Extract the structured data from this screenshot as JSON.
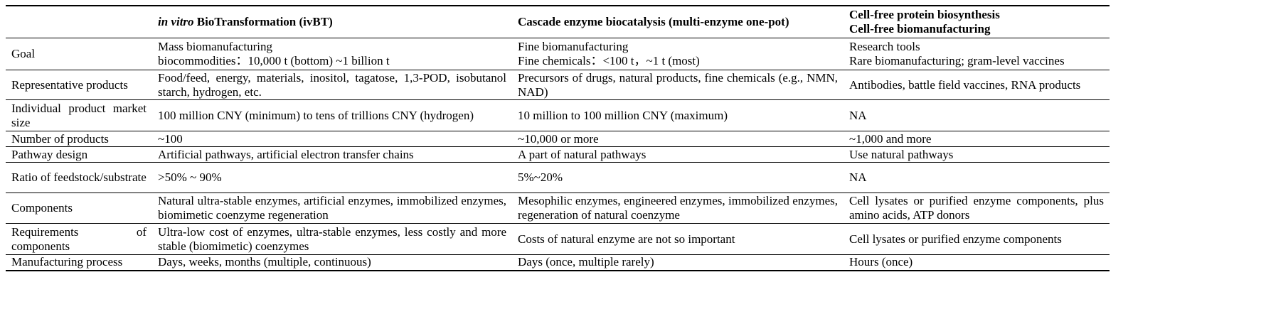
{
  "header": {
    "columns": [
      {
        "italic": "in vitro",
        "text": "BioTransformation (ivBT)"
      },
      {
        "text": "Cascade enzyme biocatalysis (multi-enzyme one-pot)"
      },
      {
        "lines": [
          "Cell-free protein biosynthesis",
          "Cell-free biomanufacturing"
        ]
      }
    ]
  },
  "table": {
    "rows": [
      {
        "label": "Goal",
        "cells": [
          [
            "Mass biomanufacturing",
            "biocommodities：10,000 t (bottom) ~1 billion t"
          ],
          [
            "Fine biomanufacturing",
            "Fine chemicals：<100 t，~1 t (most)"
          ],
          [
            "Research tools",
            "Rare biomanufacturing; gram-level vaccines"
          ]
        ]
      },
      {
        "label": "Representative products",
        "cells": [
          [
            "Food/feed, energy, materials, inositol, tagatose, 1,3-POD, isobutanol starch, hydrogen, etc."
          ],
          [
            "Precursors of drugs, natural products, fine chemicals (e.g., NMN, NAD)"
          ],
          [
            "Antibodies, battle field vaccines, RNA products"
          ]
        ]
      },
      {
        "label": "Individual product market size",
        "cells": [
          [
            "100 million CNY (minimum) to tens of trillions CNY (hydrogen)"
          ],
          [
            "10 million to 100 million CNY (maximum)"
          ],
          [
            "NA"
          ]
        ]
      },
      {
        "label": "Number of products",
        "cells": [
          [
            "~100"
          ],
          [
            "~10,000 or more"
          ],
          [
            "~1,000 and more"
          ]
        ]
      },
      {
        "label": "Pathway design",
        "cells": [
          [
            "Artificial pathways, artificial electron transfer chains"
          ],
          [
            "A part of natural pathways"
          ],
          [
            "Use natural pathways"
          ]
        ]
      },
      {
        "label": "Ratio of feedstock/substrate",
        "cells": [
          [
            ">50% ~ 90%"
          ],
          [
            "5%~20%"
          ],
          [
            "NA"
          ]
        ]
      },
      {
        "label": "Components",
        "cells": [
          [
            "Natural ultra-stable enzymes, artificial enzymes, immobilized enzymes, biomimetic coenzyme regeneration"
          ],
          [
            "Mesophilic enzymes, engineered enzymes, immobilized enzymes, regeneration of natural coenzyme"
          ],
          [
            "Cell lysates or purified enzyme components, plus amino acids, ATP donors"
          ]
        ]
      },
      {
        "label": "Requirements of components",
        "cells": [
          [
            "Ultra-low cost of enzymes, ultra-stable enzymes, less costly and more stable (biomimetic) coenzymes"
          ],
          [
            "Costs of natural enzyme are not so important"
          ],
          [
            "Cell lysates or purified enzyme components"
          ]
        ]
      },
      {
        "label": "Manufacturing process",
        "cells": [
          [
            "Days, weeks, months (multiple, continuous)"
          ],
          [
            "Days (once, multiple rarely)"
          ],
          [
            "Hours (once)"
          ]
        ]
      }
    ]
  }
}
